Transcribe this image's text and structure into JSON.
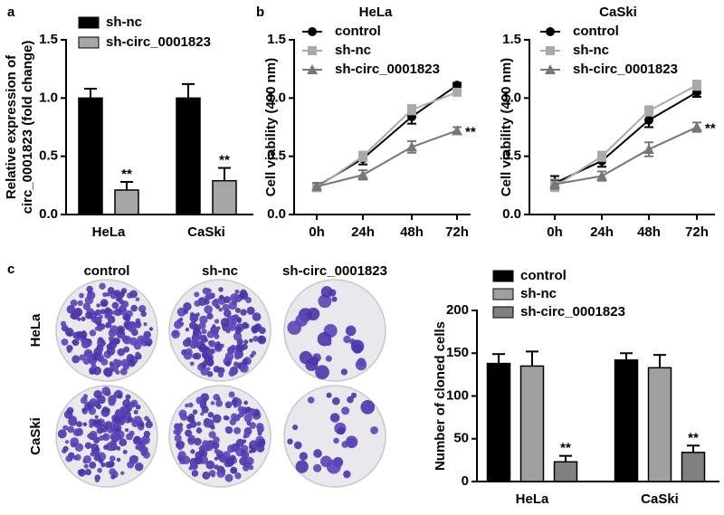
{
  "chart_data": [
    {
      "type": "bar",
      "panel": "a",
      "ylabel": [
        "Relative expression of",
        "circ_0001823 (fold change)"
      ],
      "categories": [
        "HeLa",
        "CaSki"
      ],
      "series": [
        {
          "name": "sh-nc",
          "color": "#000000",
          "values": [
            1.0,
            1.0
          ],
          "errors": [
            0.08,
            0.12
          ]
        },
        {
          "name": "sh-circ_0001823",
          "color": "#a6a6a6",
          "values": [
            0.21,
            0.29
          ],
          "errors": [
            0.07,
            0.11
          ],
          "significance": [
            "**",
            "**"
          ]
        }
      ],
      "ylim": [
        0,
        1.5
      ],
      "yticks": [
        {
          "value": 0,
          "label": "0.0"
        },
        {
          "value": 0.5,
          "label": "0.5"
        },
        {
          "value": 1,
          "label": "1.0"
        },
        {
          "value": 1.5,
          "label": "1.5"
        }
      ]
    },
    {
      "type": "line",
      "panel": "b",
      "title": "HeLa",
      "ylabel": [
        "Cell viability (490 nm)"
      ],
      "categories": [
        "0h",
        "24h",
        "48h",
        "72h"
      ],
      "series": [
        {
          "name": "control",
          "color": "#000000",
          "marker": "circle",
          "values": [
            0.24,
            0.48,
            0.84,
            1.11
          ],
          "errors": [
            0.03,
            0.05,
            0.06,
            0.02
          ]
        },
        {
          "name": "sh-nc",
          "color": "#aaaaaa",
          "marker": "square",
          "values": [
            0.23,
            0.5,
            0.9,
            1.05
          ],
          "errors": [
            0.03,
            0.04,
            0.04,
            0.02
          ]
        },
        {
          "name": "sh-circ_0001823",
          "color": "#777777",
          "marker": "triangle",
          "values": [
            0.24,
            0.34,
            0.58,
            0.72
          ],
          "errors": [
            0.03,
            0.04,
            0.05,
            0.03
          ],
          "significance": [
            null,
            null,
            null,
            "**"
          ]
        }
      ],
      "ylim": [
        0,
        1.5
      ],
      "yticks": [
        {
          "value": 0,
          "label": "0.0"
        },
        {
          "value": 0.5,
          "label": "0.5"
        },
        {
          "value": 1,
          "label": "1.0"
        },
        {
          "value": 1.5,
          "label": "1.5"
        }
      ]
    },
    {
      "type": "line",
      "title": "CaSki",
      "ylabel": [
        "Cell viability (490 nm)"
      ],
      "categories": [
        "0h",
        "24h",
        "48h",
        "72h"
      ],
      "series": [
        {
          "name": "control",
          "color": "#000000",
          "marker": "circle",
          "values": [
            0.27,
            0.46,
            0.81,
            1.05
          ],
          "errors": [
            0.06,
            0.05,
            0.06,
            0.04
          ]
        },
        {
          "name": "sh-nc",
          "color": "#aaaaaa",
          "marker": "square",
          "values": [
            0.24,
            0.5,
            0.89,
            1.11
          ],
          "errors": [
            0.04,
            0.04,
            0.04,
            0.04
          ]
        },
        {
          "name": "sh-circ_0001823",
          "color": "#777777",
          "marker": "triangle",
          "values": [
            0.26,
            0.33,
            0.56,
            0.75
          ],
          "errors": [
            0.04,
            0.04,
            0.06,
            0.04
          ],
          "significance": [
            null,
            null,
            null,
            "**"
          ]
        }
      ],
      "ylim": [
        0,
        1.5
      ],
      "yticks": [
        {
          "value": 0,
          "label": "0.0"
        },
        {
          "value": 0.5,
          "label": "0.5"
        },
        {
          "value": 1,
          "label": "1.0"
        },
        {
          "value": 1.5,
          "label": "1.5"
        }
      ]
    },
    {
      "type": "bar",
      "panel": "c",
      "ylabel": [
        "Number of cloned cells"
      ],
      "categories": [
        "HeLa",
        "CaSki"
      ],
      "series": [
        {
          "name": "control",
          "color": "#000000",
          "values": [
            138,
            142
          ],
          "errors": [
            11,
            8
          ]
        },
        {
          "name": "sh-nc",
          "color": "#a0a0a0",
          "values": [
            135,
            133
          ],
          "errors": [
            17,
            15
          ]
        },
        {
          "name": "sh-circ_0001823",
          "color": "#808080",
          "values": [
            23,
            34
          ],
          "errors": [
            7,
            8
          ],
          "significance": [
            "**",
            "**"
          ]
        }
      ],
      "ylim": [
        0,
        200
      ],
      "yticks": [
        0,
        50,
        100,
        150,
        200
      ]
    }
  ],
  "colony_images": {
    "column_labels": [
      "control",
      "sh-nc",
      "sh-circ_0001823"
    ],
    "row_labels": [
      "HeLa",
      "CaSki"
    ]
  }
}
